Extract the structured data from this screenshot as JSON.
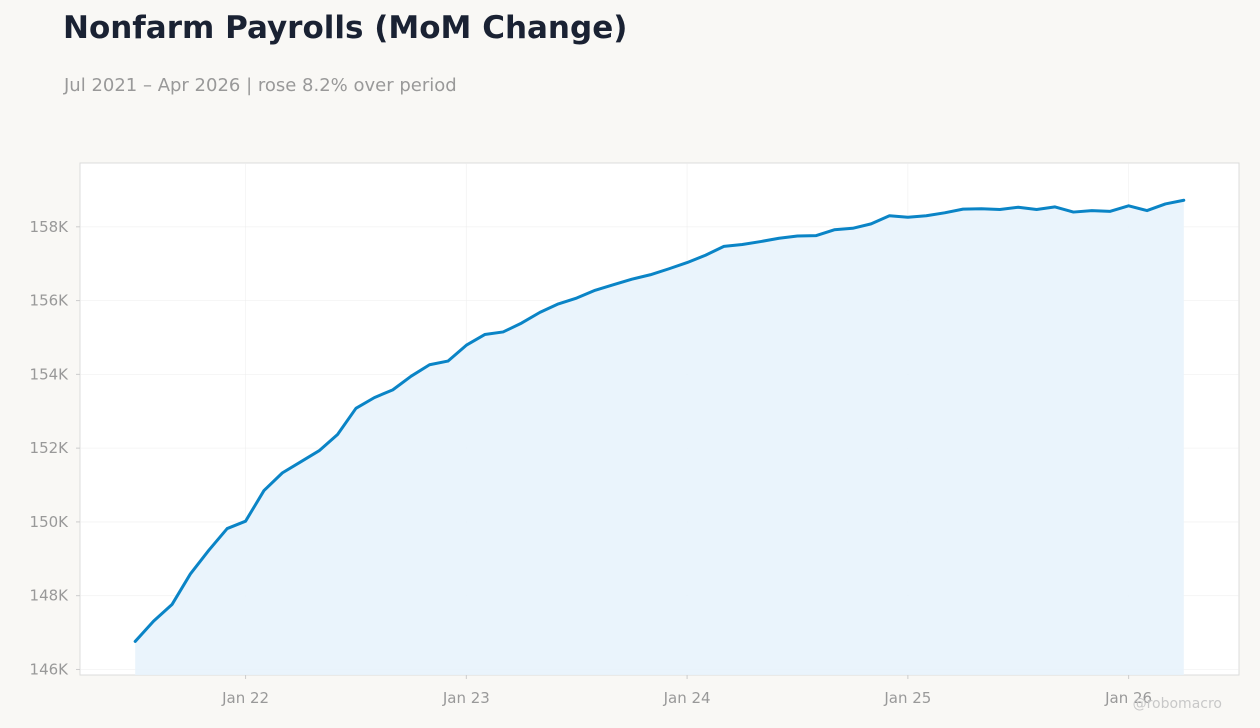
{
  "header": {
    "title": "Nonfarm Payrolls (MoM Change)",
    "subtitle": "Jul 2021 – Apr 2026 | rose 8.2% over period"
  },
  "watermark": "@robomacro",
  "colors": {
    "line": "#0a84c6",
    "fill": "#e8f3fc",
    "background": "#f9f8f5",
    "plot_background": "#ffffff",
    "grid": "#ececec"
  },
  "chart_data": {
    "type": "area",
    "title": "Nonfarm Payrolls (MoM Change)",
    "subtitle": "Jul 2021 – Apr 2026 | rose 8.2% over period",
    "xlabel": "",
    "ylabel": "",
    "x_start": "2021-07",
    "x_frequency": "monthly",
    "x": [
      "2021-07",
      "2021-08",
      "2021-09",
      "2021-10",
      "2021-11",
      "2021-12",
      "2022-01",
      "2022-02",
      "2022-03",
      "2022-04",
      "2022-05",
      "2022-06",
      "2022-07",
      "2022-08",
      "2022-09",
      "2022-10",
      "2022-11",
      "2022-12",
      "2023-01",
      "2023-02",
      "2023-03",
      "2023-04",
      "2023-05",
      "2023-06",
      "2023-07",
      "2023-08",
      "2023-09",
      "2023-10",
      "2023-11",
      "2023-12",
      "2024-01",
      "2024-02",
      "2024-03",
      "2024-04",
      "2024-05",
      "2024-06",
      "2024-07",
      "2024-08",
      "2024-09",
      "2024-10",
      "2024-11",
      "2024-12",
      "2025-01",
      "2025-02",
      "2025-03",
      "2025-04",
      "2025-05",
      "2025-06",
      "2025-07",
      "2025-08",
      "2025-09",
      "2025-10",
      "2025-11",
      "2025-12",
      "2026-01",
      "2026-02",
      "2026-03",
      "2026-04"
    ],
    "series": [
      {
        "name": "",
        "values": [
          146760,
          147310,
          147760,
          148590,
          149230,
          149820,
          150020,
          150850,
          151330,
          151630,
          151930,
          152370,
          153080,
          153370,
          153580,
          153950,
          154260,
          154360,
          154790,
          155080,
          155150,
          155390,
          155680,
          155910,
          156070,
          156280,
          156430,
          156580,
          156700,
          156860,
          157030,
          157230,
          157470,
          157520,
          157600,
          157690,
          157750,
          157760,
          157920,
          157960,
          158080,
          158300,
          158260,
          158300,
          158380,
          158480,
          158490,
          158470,
          158530,
          158470,
          158540,
          158400,
          158440,
          158420,
          158570,
          158440,
          158620,
          158720
        ]
      }
    ],
    "x_ticks": [
      {
        "date": "2022-01",
        "label": "Jan 22"
      },
      {
        "date": "2023-01",
        "label": "Jan 23"
      },
      {
        "date": "2024-01",
        "label": "Jan 24"
      },
      {
        "date": "2025-01",
        "label": "Jan 25"
      },
      {
        "date": "2026-01",
        "label": "Jan 26"
      }
    ],
    "y_ticks": [
      146000,
      148000,
      150000,
      152000,
      154000,
      156000,
      158000
    ],
    "y_tick_labels": [
      "146K",
      "148K",
      "150K",
      "152K",
      "154K",
      "156K",
      "158K"
    ],
    "xlim": [
      "2021-04",
      "2026-07"
    ],
    "ylim": [
      145850,
      159730
    ],
    "grid": true,
    "legend": "none"
  }
}
